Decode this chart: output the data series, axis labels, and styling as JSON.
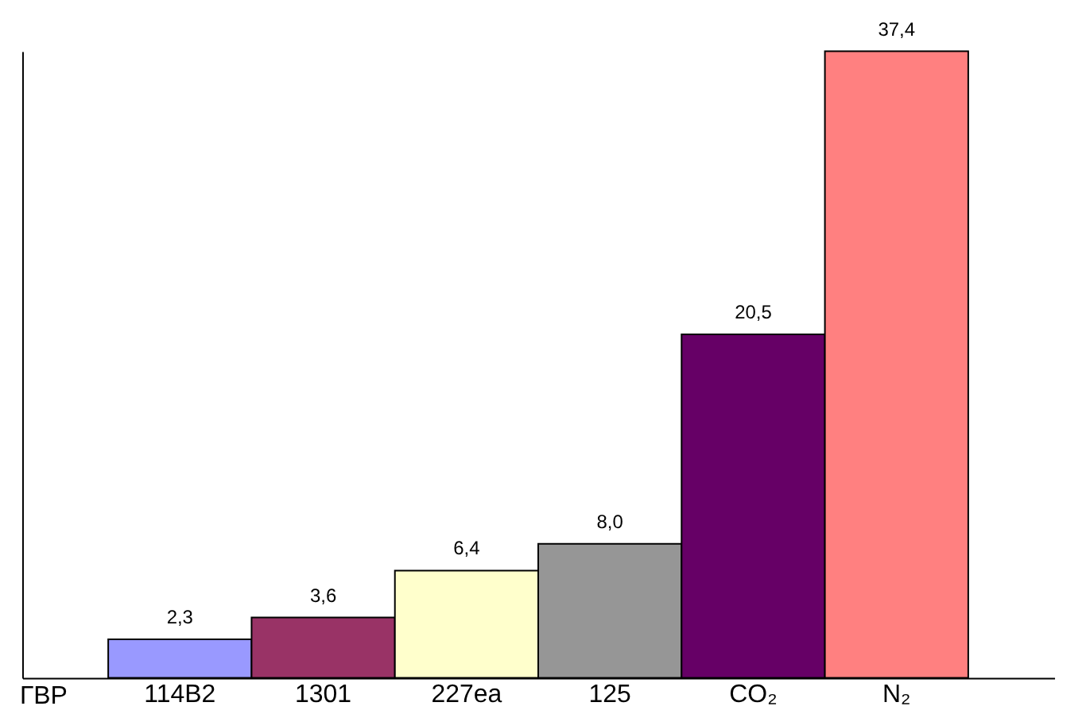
{
  "chart_data": {
    "type": "bar",
    "xlabel": "ГВР",
    "categories": [
      "114B2",
      "1301",
      "227ea",
      "125",
      "CO₂",
      "N₂"
    ],
    "values": [
      2.3,
      3.6,
      6.4,
      8.0,
      20.5,
      37.4
    ],
    "colors": [
      "#9999ff",
      "#993366",
      "#ffffcc",
      "#969696",
      "#660066",
      "#ff8080"
    ],
    "value_labels": [
      "2,3",
      "3,6",
      "6,4",
      "8,0",
      "20,5",
      "37,4"
    ],
    "tick_labels": "x",
    "grid": false,
    "legend": false
  }
}
